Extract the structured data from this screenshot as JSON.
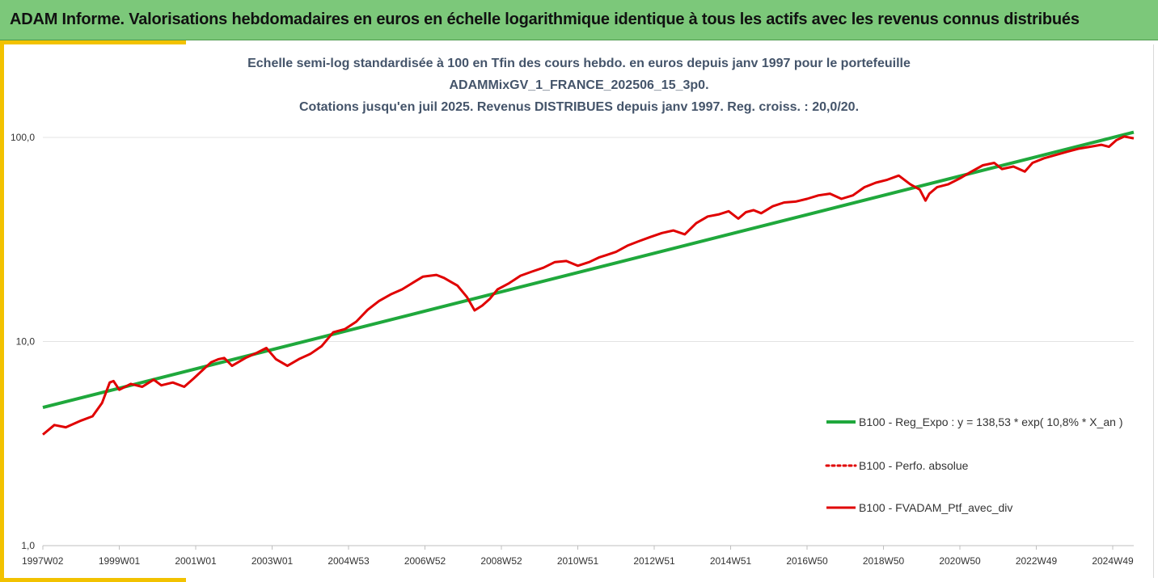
{
  "banner": {
    "title": "ADAM Informe. Valorisations hebdomadaires en euros en échelle logarithmique identique à tous les actifs avec les revenus connus distribués"
  },
  "chart_data": {
    "type": "line",
    "title_lines": [
      "Echelle semi-log standardisée à 100 en Tfin des cours hebdo.  en euros depuis janv 1997 pour le portefeuille",
      "ADAMMixGV_1_FRANCE_202506_15_3p0.",
      "Cotations  jusqu'en juil 2025. Revenus DISTRIBUES depuis janv 1997. Reg. croiss. : 20,0/20."
    ],
    "y_scale": "log",
    "ylim": [
      1,
      100
    ],
    "y_ticks": [
      {
        "value": 1,
        "label": "1,0"
      },
      {
        "value": 10,
        "label": "10,0"
      },
      {
        "value": 100,
        "label": "100,0"
      }
    ],
    "xlim": [
      1997.0,
      2025.55
    ],
    "x_ticks": [
      {
        "value": 1997.0,
        "label": "1997W02"
      },
      {
        "value": 1999.0,
        "label": "1999W01"
      },
      {
        "value": 2001.0,
        "label": "2001W01"
      },
      {
        "value": 2003.0,
        "label": "2003W01"
      },
      {
        "value": 2005.0,
        "label": "2004W53"
      },
      {
        "value": 2007.0,
        "label": "2006W52"
      },
      {
        "value": 2009.0,
        "label": "2008W52"
      },
      {
        "value": 2011.0,
        "label": "2010W51"
      },
      {
        "value": 2013.0,
        "label": "2012W51"
      },
      {
        "value": 2015.0,
        "label": "2014W51"
      },
      {
        "value": 2017.0,
        "label": "2016W50"
      },
      {
        "value": 2019.0,
        "label": "2018W50"
      },
      {
        "value": 2021.0,
        "label": "2020W50"
      },
      {
        "value": 2023.0,
        "label": "2022W49"
      },
      {
        "value": 2025.0,
        "label": "2024W49"
      }
    ],
    "grid": "horizontal",
    "legend_position": "right",
    "colors": {
      "regression": "#1fa83c",
      "perf_absolue": "#e00000",
      "portfolio": "#e00000",
      "grid": "#e3e3e3",
      "axis": "#bfbfbf"
    },
    "series": [
      {
        "name": "B100 - Reg_Expo : y = 138,53 * exp( 10,8% *  X_an )",
        "style": "solid-green",
        "x": [
          1997.0,
          2025.55
        ],
        "values": [
          4.75,
          106.0
        ]
      },
      {
        "name": "B100 - Perfo. absolue",
        "style": "dotted-red",
        "x": [],
        "values": []
      },
      {
        "name": "B100 - FVADAM_Ptf_avec_div",
        "style": "solid-red",
        "x": [
          1997.0,
          1997.3,
          1997.6,
          1998.0,
          1998.3,
          1998.55,
          1998.75,
          1998.85,
          1999.0,
          1999.3,
          1999.6,
          1999.9,
          2000.1,
          2000.4,
          2000.7,
          2000.95,
          2001.2,
          2001.4,
          2001.6,
          2001.75,
          2001.95,
          2002.3,
          2002.6,
          2002.85,
          2003.1,
          2003.4,
          2003.7,
          2004.0,
          2004.3,
          2004.6,
          2004.9,
          2005.2,
          2005.5,
          2005.8,
          2006.1,
          2006.4,
          2006.7,
          2006.95,
          2007.3,
          2007.5,
          2007.7,
          2007.85,
          2008.1,
          2008.3,
          2008.5,
          2008.7,
          2008.9,
          2009.2,
          2009.5,
          2009.8,
          2010.1,
          2010.4,
          2010.7,
          2011.0,
          2011.3,
          2011.55,
          2011.75,
          2012.0,
          2012.3,
          2012.6,
          2012.9,
          2013.2,
          2013.5,
          2013.8,
          2014.1,
          2014.4,
          2014.7,
          2014.95,
          2015.2,
          2015.4,
          2015.6,
          2015.8,
          2016.1,
          2016.4,
          2016.7,
          2017.0,
          2017.3,
          2017.6,
          2017.9,
          2018.2,
          2018.5,
          2018.8,
          2019.1,
          2019.4,
          2019.7,
          2019.95,
          2020.1,
          2020.2,
          2020.4,
          2020.7,
          2021.0,
          2021.3,
          2021.6,
          2021.9,
          2022.1,
          2022.4,
          2022.7,
          2022.9,
          2023.2,
          2023.5,
          2023.8,
          2024.1,
          2024.4,
          2024.7,
          2024.9,
          2025.1,
          2025.3,
          2025.55
        ],
        "values": [
          3.5,
          3.9,
          3.8,
          4.1,
          4.3,
          5.0,
          6.3,
          6.4,
          5.8,
          6.2,
          6.0,
          6.5,
          6.1,
          6.3,
          6.0,
          6.6,
          7.3,
          7.9,
          8.2,
          8.3,
          7.6,
          8.3,
          8.8,
          9.3,
          8.2,
          7.6,
          8.2,
          8.7,
          9.5,
          11.1,
          11.5,
          12.5,
          14.3,
          15.8,
          17.0,
          18.0,
          19.5,
          20.8,
          21.2,
          20.5,
          19.5,
          18.8,
          16.5,
          14.2,
          15.0,
          16.2,
          18.0,
          19.3,
          21.0,
          22.0,
          23.0,
          24.5,
          24.8,
          23.5,
          24.5,
          25.8,
          26.5,
          27.5,
          29.5,
          31.0,
          32.5,
          34.0,
          35.0,
          33.5,
          38.0,
          41.0,
          42.0,
          43.5,
          40.0,
          43.0,
          44.0,
          42.5,
          46.0,
          48.0,
          48.5,
          50.0,
          52.0,
          53.0,
          50.0,
          52.0,
          57.0,
          60.0,
          62.0,
          65.0,
          59.0,
          55.5,
          49.0,
          53.0,
          57.0,
          59.0,
          63.0,
          68.0,
          73.0,
          75.0,
          70.0,
          72.0,
          68.0,
          75.0,
          79.0,
          82.0,
          85.0,
          88.0,
          90.0,
          92.0,
          90.0,
          97.0,
          101.0,
          99.0
        ]
      }
    ]
  }
}
